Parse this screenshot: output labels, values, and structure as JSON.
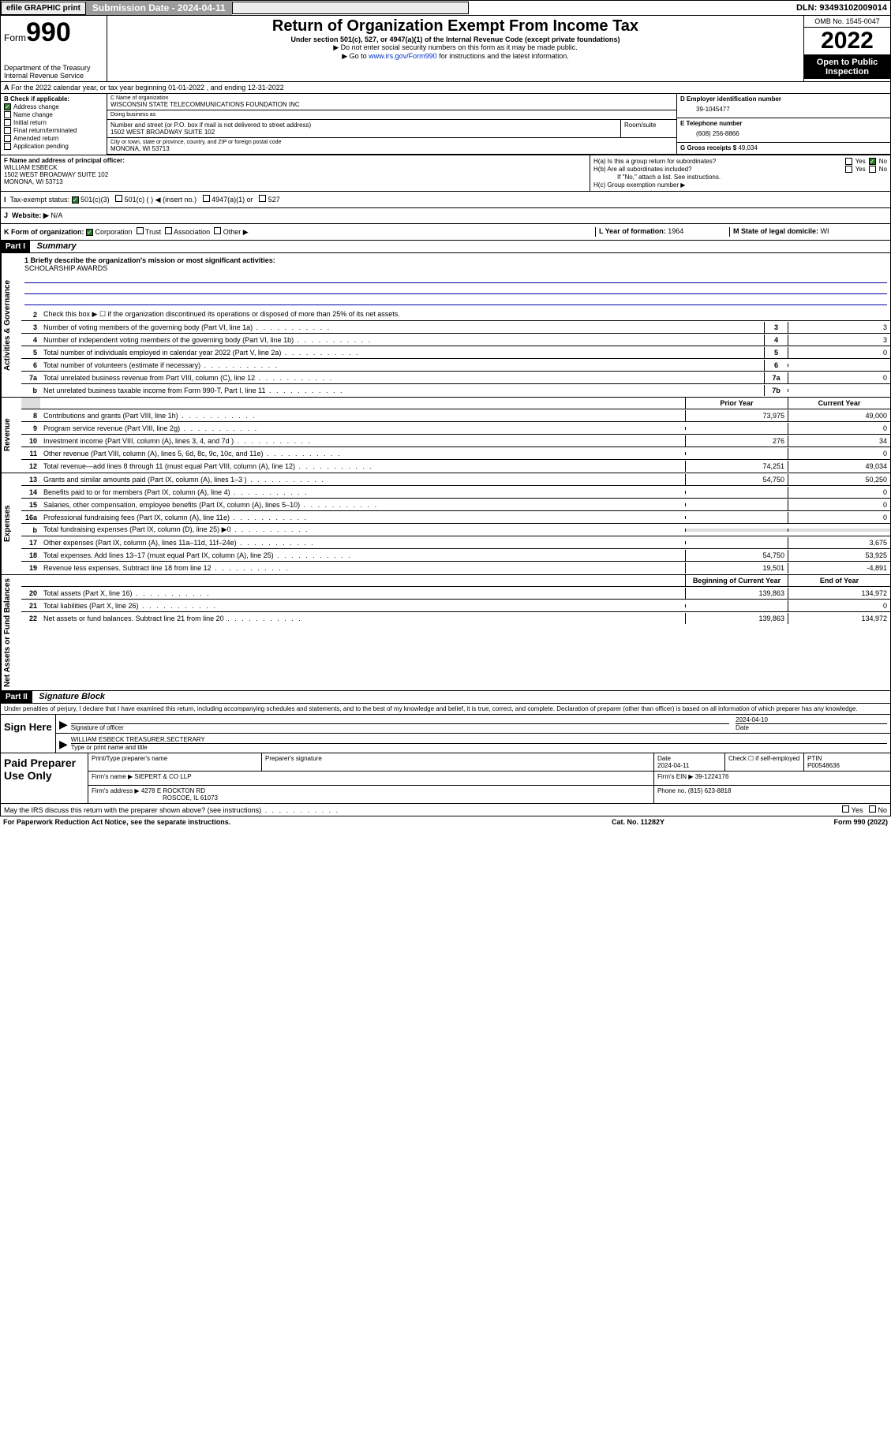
{
  "top": {
    "efile": "efile GRAPHIC print",
    "sub_label": "Submission Date - 2024-04-11",
    "dln": "DLN: 93493102009014"
  },
  "header": {
    "form_word": "Form",
    "form_num": "990",
    "dept": "Department of the Treasury",
    "irs": "Internal Revenue Service",
    "title": "Return of Organization Exempt From Income Tax",
    "subtitle": "Under section 501(c), 527, or 4947(a)(1) of the Internal Revenue Code (except private foundations)",
    "note1": "▶ Do not enter social security numbers on this form as it may be made public.",
    "note2_pre": "▶ Go to ",
    "note2_link": "www.irs.gov/Form990",
    "note2_post": " for instructions and the latest information.",
    "omb": "OMB No. 1545-0047",
    "year": "2022",
    "open": "Open to Public Inspection"
  },
  "A": "For the 2022 calendar year, or tax year beginning 01-01-2022    , and ending 12-31-2022",
  "B": {
    "label": "B Check if applicable:",
    "items": [
      "Address change",
      "Name change",
      "Initial return",
      "Final return/terminated",
      "Amended return",
      "Application pending"
    ],
    "checked": [
      true,
      false,
      false,
      false,
      false,
      false
    ]
  },
  "C": {
    "name_lbl": "C Name of organization",
    "name": "WISCONSIN STATE TELECOMMUNICATIONS FOUNDATION INC",
    "dba_lbl": "Doing business as",
    "addr_lbl": "Number and street (or P.O. box if mail is not delivered to street address)",
    "room_lbl": "Room/suite",
    "addr": "1502 WEST BROADWAY SUITE 102",
    "city_lbl": "City or town, state or province, country, and ZIP or foreign postal code",
    "city": "MONONA, WI  53713"
  },
  "D": {
    "lbl": "D Employer identification number",
    "val": "39-1045477"
  },
  "E": {
    "lbl": "E Telephone number",
    "val": "(608) 256-8866"
  },
  "G": {
    "lbl": "G Gross receipts $",
    "val": "49,034"
  },
  "F": {
    "lbl": "F  Name and address of principal officer:",
    "name": "WILLIAM ESBECK",
    "addr": "1502 WEST BROADWAY SUITE 102",
    "city": "MONONA, WI  53713"
  },
  "H": {
    "a": "H(a)  Is this a group return for subordinates?",
    "b": "H(b)  Are all subordinates included?",
    "b_note": "If \"No,\" attach a list. See instructions.",
    "c": "H(c)  Group exemption number ▶",
    "yes": "Yes",
    "no": "No"
  },
  "I": {
    "lbl": "Tax-exempt status:",
    "opts": [
      "501(c)(3)",
      "501(c) (  ) ◀ (insert no.)",
      "4947(a)(1) or",
      "527"
    ]
  },
  "J": {
    "lbl": "Website: ▶",
    "val": "N/A"
  },
  "K": {
    "lbl": "K Form of organization:",
    "opts": [
      "Corporation",
      "Trust",
      "Association",
      "Other ▶"
    ]
  },
  "L": {
    "lbl": "L Year of formation:",
    "val": "1964"
  },
  "M": {
    "lbl": "M State of legal domicile:",
    "val": "WI"
  },
  "part1": {
    "hdr": "Part I",
    "title": "Summary",
    "line1_lbl": "1  Briefly describe the organization's mission or most significant activities:",
    "line1_val": "SCHOLARSHIP AWARDS",
    "line2": "Check this box ▶ ☐  if the organization discontinued its operations or disposed of more than 25% of its net assets.",
    "gov_rows": [
      {
        "n": "3",
        "t": "Number of voting members of the governing body (Part VI, line 1a)",
        "box": "3",
        "v": "3"
      },
      {
        "n": "4",
        "t": "Number of independent voting members of the governing body (Part VI, line 1b)",
        "box": "4",
        "v": "3"
      },
      {
        "n": "5",
        "t": "Total number of individuals employed in calendar year 2022 (Part V, line 2a)",
        "box": "5",
        "v": "0"
      },
      {
        "n": "6",
        "t": "Total number of volunteers (estimate if necessary)",
        "box": "6",
        "v": ""
      },
      {
        "n": "7a",
        "t": "Total unrelated business revenue from Part VIII, column (C), line 12",
        "box": "7a",
        "v": "0"
      },
      {
        "n": "b",
        "t": "Net unrelated business taxable income from Form 990-T, Part I, line 11",
        "box": "7b",
        "v": ""
      }
    ],
    "col_hdr": {
      "prior": "Prior Year",
      "curr": "Current Year"
    },
    "rev_rows": [
      {
        "n": "8",
        "t": "Contributions and grants (Part VIII, line 1h)",
        "p": "73,975",
        "c": "49,000"
      },
      {
        "n": "9",
        "t": "Program service revenue (Part VIII, line 2g)",
        "p": "",
        "c": "0"
      },
      {
        "n": "10",
        "t": "Investment income (Part VIII, column (A), lines 3, 4, and 7d )",
        "p": "276",
        "c": "34"
      },
      {
        "n": "11",
        "t": "Other revenue (Part VIII, column (A), lines 5, 6d, 8c, 9c, 10c, and 11e)",
        "p": "",
        "c": "0"
      },
      {
        "n": "12",
        "t": "Total revenue—add lines 8 through 11 (must equal Part VIII, column (A), line 12)",
        "p": "74,251",
        "c": "49,034"
      }
    ],
    "exp_rows": [
      {
        "n": "13",
        "t": "Grants and similar amounts paid (Part IX, column (A), lines 1–3 )",
        "p": "54,750",
        "c": "50,250"
      },
      {
        "n": "14",
        "t": "Benefits paid to or for members (Part IX, column (A), line 4)",
        "p": "",
        "c": "0"
      },
      {
        "n": "15",
        "t": "Salaries, other compensation, employee benefits (Part IX, column (A), lines 5–10)",
        "p": "",
        "c": "0"
      },
      {
        "n": "16a",
        "t": "Professional fundraising fees (Part IX, column (A), line 11e)",
        "p": "",
        "c": "0"
      },
      {
        "n": "b",
        "t": "Total fundraising expenses (Part IX, column (D), line 25) ▶0",
        "p": "shade",
        "c": "shade"
      },
      {
        "n": "17",
        "t": "Other expenses (Part IX, column (A), lines 11a–11d, 11f–24e)",
        "p": "",
        "c": "3,675"
      },
      {
        "n": "18",
        "t": "Total expenses. Add lines 13–17 (must equal Part IX, column (A), line 25)",
        "p": "54,750",
        "c": "53,925"
      },
      {
        "n": "19",
        "t": "Revenue less expenses. Subtract line 18 from line 12",
        "p": "19,501",
        "c": "-4,891"
      }
    ],
    "na_hdr": {
      "beg": "Beginning of Current Year",
      "end": "End of Year"
    },
    "na_rows": [
      {
        "n": "20",
        "t": "Total assets (Part X, line 16)",
        "p": "139,863",
        "c": "134,972"
      },
      {
        "n": "21",
        "t": "Total liabilities (Part X, line 26)",
        "p": "",
        "c": "0"
      },
      {
        "n": "22",
        "t": "Net assets or fund balances. Subtract line 21 from line 20",
        "p": "139,863",
        "c": "134,972"
      }
    ]
  },
  "part2": {
    "hdr": "Part II",
    "title": "Signature Block",
    "decl": "Under penalties of perjury, I declare that I have examined this return, including accompanying schedules and statements, and to the best of my knowledge and belief, it is true, correct, and complete. Declaration of preparer (other than officer) is based on all information of which preparer has any knowledge.",
    "sign_here": "Sign Here",
    "sig_lbl": "Signature of officer",
    "date_lbl": "Date",
    "date_val": "2024-04-10",
    "name_lbl": "Type or print name and title",
    "name_val": "WILLIAM ESBECK  TREASURER,SECTERARY",
    "paid": "Paid Preparer Use Only",
    "prep_hdrs": [
      "Print/Type preparer's name",
      "Preparer's signature",
      "Date",
      "Check ☐ if self-employed",
      "PTIN"
    ],
    "prep_date": "2024-04-11",
    "ptin": "P00548636",
    "firm_name_lbl": "Firm's name    ▶",
    "firm_name": "SIEPERT & CO LLP",
    "firm_ein_lbl": "Firm's EIN ▶",
    "firm_ein": "39-1224176",
    "firm_addr_lbl": "Firm's address ▶",
    "firm_addr": "4278 E ROCKTON RD",
    "firm_city": "ROSCOE, IL  61073",
    "phone_lbl": "Phone no.",
    "phone": "(815) 623-8818",
    "may_irs": "May the IRS discuss this return with the preparer shown above? (see instructions)"
  },
  "footer": {
    "pra": "For Paperwork Reduction Act Notice, see the separate instructions.",
    "cat": "Cat. No. 11282Y",
    "form": "Form 990 (2022)"
  },
  "side_labels": {
    "gov": "Activities & Governance",
    "rev": "Revenue",
    "exp": "Expenses",
    "na": "Net Assets or Fund Balances"
  }
}
